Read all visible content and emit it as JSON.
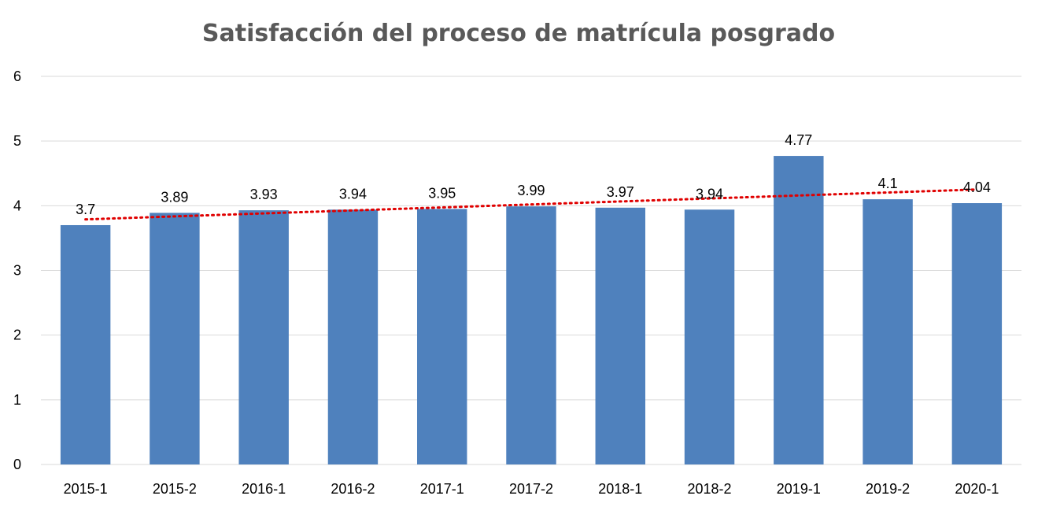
{
  "chart_data": {
    "type": "bar",
    "title": "Satisfacción del proceso de matrícula posgrado",
    "xlabel": "",
    "ylabel": "",
    "categories": [
      "2015-1",
      "2015-2",
      "2016-1",
      "2016-2",
      "2017-1",
      "2017-2",
      "2018-1",
      "2018-2",
      "2019-1",
      "2019-2",
      "2020-1"
    ],
    "values": [
      3.7,
      3.89,
      3.93,
      3.94,
      3.95,
      3.99,
      3.97,
      3.94,
      4.77,
      4.1,
      4.04
    ],
    "data_labels": [
      "3.7",
      "3.89",
      "3.93",
      "3.94",
      "3.95",
      "3.99",
      "3.97",
      "3.94",
      "4.77",
      "4.1",
      "4.04"
    ],
    "ylim": [
      0,
      6
    ],
    "yticks": [
      "0",
      "1",
      "2",
      "3",
      "4",
      "5",
      "6"
    ],
    "grid": true,
    "trendline": "linear",
    "colors": {
      "bar": "#4f81bd",
      "trendline": "#e00000",
      "grid": "#d9d9d9",
      "title": "#595959"
    }
  }
}
